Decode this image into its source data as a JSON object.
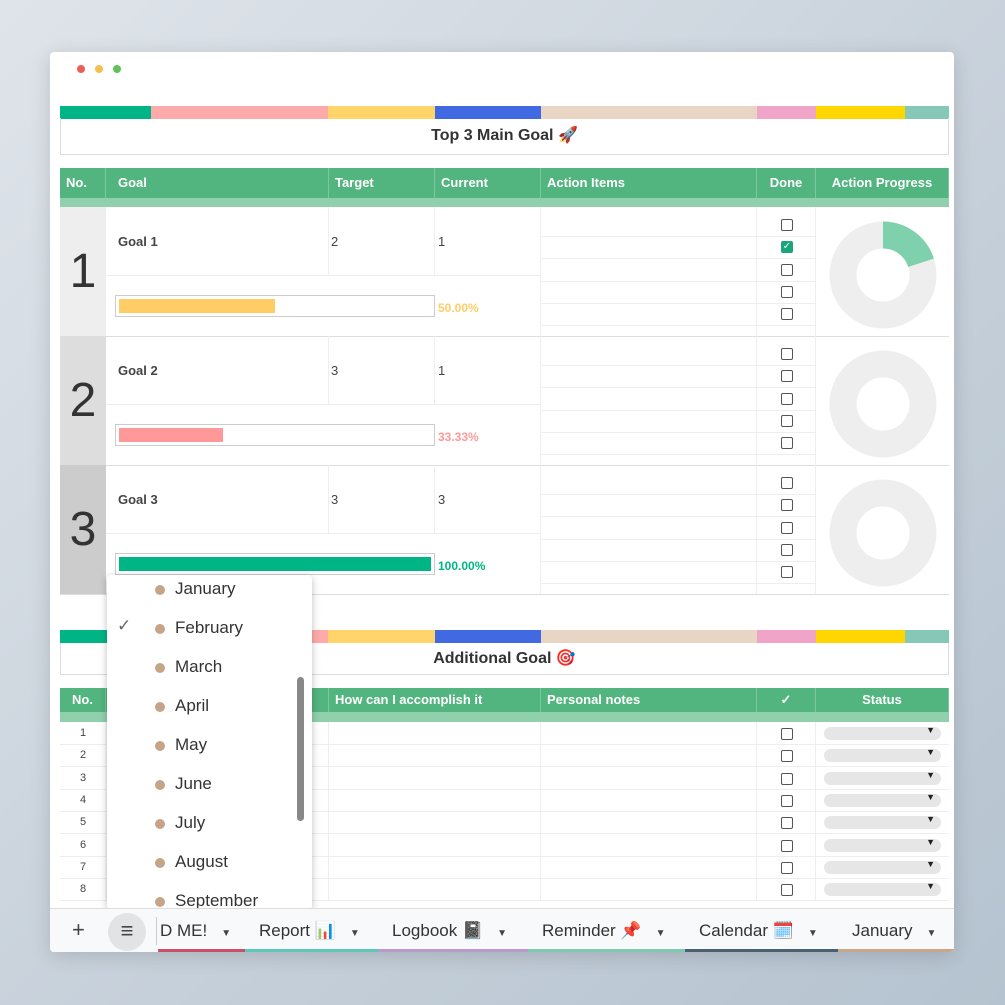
{
  "window": {
    "dots": [
      "#ec5f57",
      "#f5bf4f",
      "#5fc454"
    ]
  },
  "palette": [
    "#00b585",
    "#ffaaaa",
    "#ffd56b",
    "#4169e1",
    "#e8d5c4",
    "#f0a5c8",
    "#ffd700",
    "#85c8b8"
  ],
  "main": {
    "title": "Top 3 Main Goal 🚀",
    "headers": {
      "no": "No.",
      "goal": "Goal",
      "target": "Target",
      "current": "Current",
      "action_items": "Action Items",
      "done": "Done",
      "action_progress": "Action Progress"
    },
    "goals": [
      {
        "no": "1",
        "name": "Goal 1",
        "target": "2",
        "current": "1",
        "percent": "50.00%",
        "progress": 0.5,
        "color": "#ffcc66",
        "done": [
          false,
          true,
          false,
          false,
          false
        ],
        "action_progress": 0.2
      },
      {
        "no": "2",
        "name": "Goal 2",
        "target": "3",
        "current": "1",
        "percent": "33.33%",
        "progress": 0.3333,
        "color": "#ff9999",
        "done": [
          false,
          false,
          false,
          false,
          false
        ],
        "action_progress": 0
      },
      {
        "no": "3",
        "name": "Goal 3",
        "target": "3",
        "current": "3",
        "percent": "100.00%",
        "progress": 1,
        "color": "#00b585",
        "done": [
          false,
          false,
          false,
          false,
          false
        ],
        "action_progress": 0
      }
    ]
  },
  "additional": {
    "title": "Additional Goal 🎯",
    "headers": {
      "no": "No.",
      "how": "How can I accomplish it",
      "notes": "Personal notes",
      "check": "✓",
      "status": "Status"
    },
    "rows": [
      "1",
      "2",
      "3",
      "4",
      "5",
      "6",
      "7",
      "8"
    ]
  },
  "dropdown": {
    "selected": "February",
    "items": [
      "January",
      "February",
      "March",
      "April",
      "May",
      "June",
      "July",
      "August",
      "September"
    ]
  },
  "tabs": [
    {
      "label": "D ME!",
      "color": "#c8506a"
    },
    {
      "label": "Report 📊",
      "color": "#5ec8b8"
    },
    {
      "label": "Logbook 📓",
      "color": "#b99ac8"
    },
    {
      "label": "Reminder 📌",
      "color": "#7ec8b0"
    },
    {
      "label": "Calendar 🗓️",
      "color": "#4a6070"
    },
    {
      "label": "January",
      "color": "#c8a888"
    }
  ],
  "tabbar": {
    "add": "+",
    "menu": "≡"
  }
}
